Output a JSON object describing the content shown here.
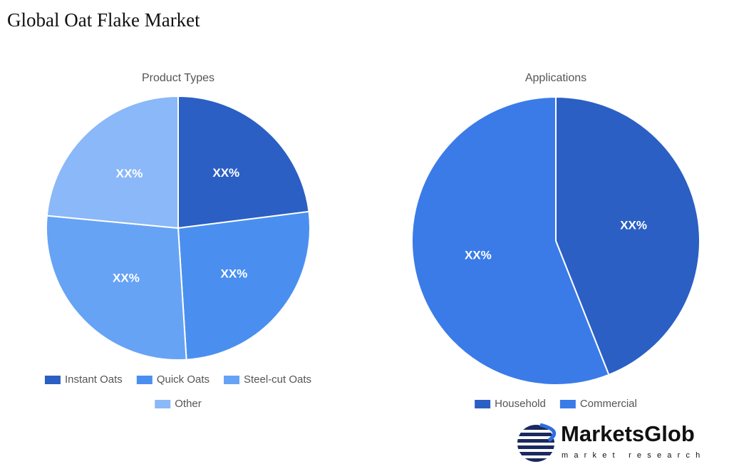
{
  "title": "Global Oat Flake Market",
  "chart_data": [
    {
      "type": "pie",
      "title": "Product Types",
      "categories": [
        "Instant Oats",
        "Quick Oats",
        "Steel-cut Oats",
        "Other"
      ],
      "values": [
        23,
        26,
        27.5,
        23.5
      ],
      "value_labels": [
        "XX%",
        "XX%",
        "XX%",
        "XX%"
      ],
      "colors": [
        "#2b5fc4",
        "#4a8ff0",
        "#66a3f5",
        "#8ab8f8"
      ]
    },
    {
      "type": "pie",
      "title": "Applications",
      "categories": [
        "Household",
        "Commercial"
      ],
      "values": [
        44,
        56
      ],
      "value_labels": [
        "XX%",
        "XX%"
      ],
      "colors": [
        "#2b5fc4",
        "#3b7be8"
      ]
    }
  ],
  "logo": {
    "name": "MarketsGlob",
    "tagline": "market research"
  }
}
